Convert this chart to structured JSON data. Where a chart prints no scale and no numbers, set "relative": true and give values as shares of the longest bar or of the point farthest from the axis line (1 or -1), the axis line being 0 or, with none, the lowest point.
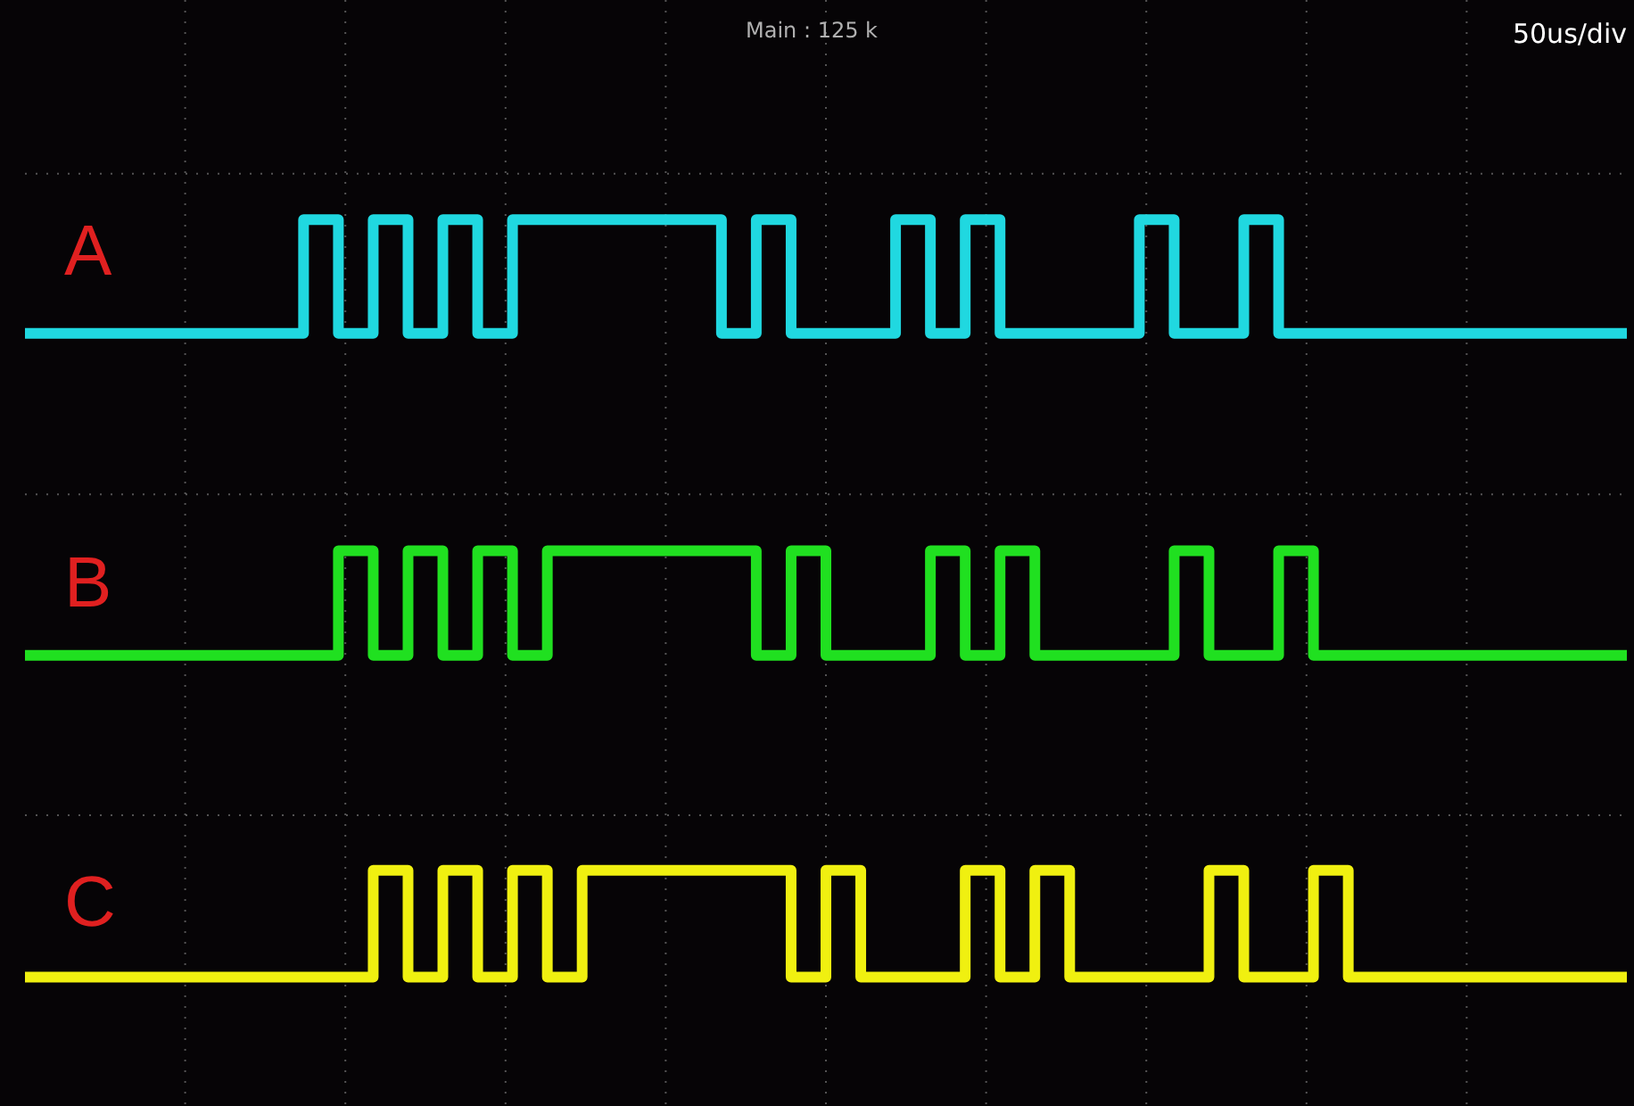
{
  "chart_data": {
    "type": "step",
    "relative": true,
    "grid": true,
    "legend": false,
    "marker": "none",
    "line_style": "solid",
    "annotations": [
      "Main : 125 k",
      "50us/div"
    ],
    "categories": [
      null,
      null,
      null,
      null,
      null,
      null,
      null,
      null,
      null,
      null,
      null,
      null,
      null,
      null,
      null,
      null,
      null,
      null,
      null,
      null,
      null,
      null,
      null,
      null,
      null,
      null,
      null,
      null,
      null,
      null,
      null,
      null,
      null,
      null,
      null,
      null,
      null,
      null,
      null,
      null,
      null,
      null,
      null,
      null,
      null,
      null,
      null
    ],
    "series": [
      {
        "name": "A",
        "color": "#20d8e0",
        "values": [
          0.85,
          0.85,
          0.85,
          0.85,
          0.85,
          0.85,
          0.85,
          0.85,
          0.85,
          1,
          0.85,
          1,
          0.85,
          1,
          0.85,
          1,
          1,
          1,
          1,
          1,
          1,
          0.85,
          1,
          0.85,
          0.85,
          0.85,
          1,
          0.85,
          1,
          0.85,
          0.85,
          0.85,
          0.85,
          1,
          0.85,
          0.85,
          1,
          0.85,
          0.85,
          0.85,
          0.85,
          0.85,
          0.85,
          0.85,
          0.85,
          0.85,
          0.85
        ]
      },
      {
        "name": "B",
        "color": "#20e020",
        "values": [
          0.425,
          0.425,
          0.425,
          0.425,
          0.425,
          0.425,
          0.425,
          0.425,
          0.425,
          0.425,
          0.563,
          0.425,
          0.563,
          0.425,
          0.563,
          0.425,
          0.563,
          0.563,
          0.563,
          0.563,
          0.563,
          0.563,
          0.425,
          0.563,
          0.425,
          0.425,
          0.425,
          0.563,
          0.425,
          0.563,
          0.425,
          0.425,
          0.425,
          0.425,
          0.563,
          0.425,
          0.425,
          0.563,
          0.425,
          0.425,
          0.425,
          0.425,
          0.425,
          0.425,
          0.425,
          0.425,
          0.425
        ]
      },
      {
        "name": "C",
        "color": "#f0f010",
        "values": [
          0,
          0,
          0,
          0,
          0,
          0,
          0,
          0,
          0,
          0,
          0,
          0.141,
          0,
          0.141,
          0,
          0.141,
          0,
          0.141,
          0.141,
          0.141,
          0.141,
          0.141,
          0.141,
          0,
          0.141,
          0,
          0,
          0,
          0.141,
          0,
          0.141,
          0,
          0,
          0,
          0,
          0.141,
          0,
          0,
          0.141,
          0,
          0,
          0,
          0,
          0,
          0,
          0,
          0
        ]
      }
    ]
  }
}
